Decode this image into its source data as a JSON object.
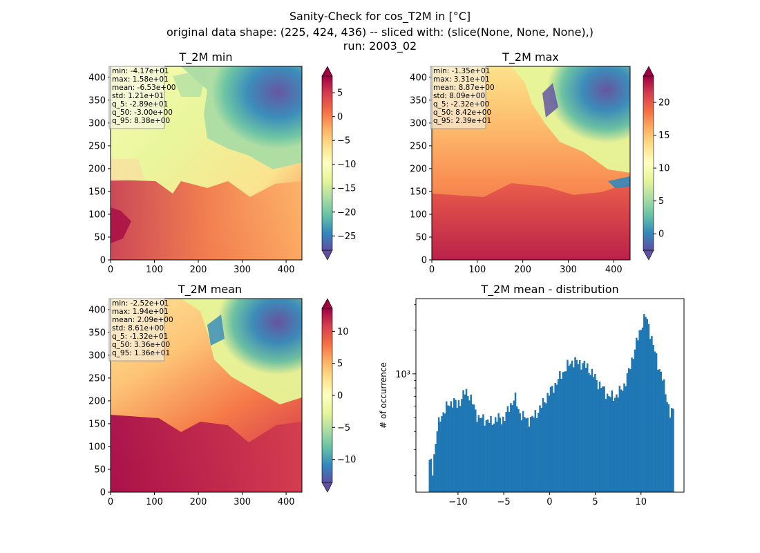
{
  "suptitle": {
    "line1": "Sanity-Check for cos_T2M in [°C]",
    "line2": "original data shape: (225, 424, 436) -- sliced with: (slice(None, None, None),)",
    "line3": "run: 2003_02"
  },
  "chart_data": [
    {
      "type": "heatmap",
      "title": "T_2M min",
      "xlim": [
        0,
        436
      ],
      "ylim": [
        0,
        424
      ],
      "xticks": [
        0,
        100,
        200,
        300,
        400
      ],
      "yticks": [
        0,
        50,
        100,
        150,
        200,
        250,
        300,
        350,
        400
      ],
      "colormap": "Spectral_r",
      "colorbar": {
        "range": [
          -28,
          8.5
        ],
        "ticks": [
          5,
          0,
          -5,
          -10,
          -15,
          -20,
          -25
        ]
      },
      "stats": [
        "min: -4.17e+01",
        "max: 1.58e+01",
        "mean: -6.53e+00",
        "std: 1.21e+01",
        "q_5: -2.89e+01",
        "q_50: -3.00e+00",
        "q_95: 8.38e+00"
      ]
    },
    {
      "type": "heatmap",
      "title": "T_2M max",
      "xlim": [
        0,
        436
      ],
      "ylim": [
        0,
        424
      ],
      "xticks": [
        0,
        100,
        200,
        300,
        400
      ],
      "yticks": [
        0,
        50,
        100,
        150,
        200,
        250,
        300,
        350,
        400
      ],
      "colormap": "Spectral_r",
      "colorbar": {
        "range": [
          -2.5,
          24
        ],
        "ticks": [
          20,
          15,
          10,
          5,
          0
        ]
      },
      "stats": [
        "min: -1.35e+01",
        "max: 3.31e+01",
        "mean: 8.87e+00",
        "std: 8.09e+00",
        "q_5: -2.32e+00",
        "q_50: 8.42e+00",
        "q_95: 2.39e+01"
      ]
    },
    {
      "type": "heatmap",
      "title": "T_2M mean",
      "xlim": [
        0,
        436
      ],
      "ylim": [
        0,
        424
      ],
      "xticks": [
        0,
        100,
        200,
        300,
        400
      ],
      "yticks": [
        0,
        50,
        100,
        150,
        200,
        250,
        300,
        350,
        400
      ],
      "colormap": "Spectral_r",
      "colorbar": {
        "range": [
          -13.6,
          13.6
        ],
        "ticks": [
          10,
          5,
          0,
          -5,
          -10
        ]
      },
      "stats": [
        "min: -2.52e+01",
        "max: 1.94e+01",
        "mean: 2.09e+00",
        "std: 8.61e+00",
        "q_5: -1.32e+01",
        "q_50: 3.36e+00",
        "q_95: 1.36e+01"
      ]
    },
    {
      "type": "bar",
      "title": "T_2M mean - distribution",
      "xlabel": "",
      "ylabel": "# of occurrence",
      "yscale": "log",
      "xlim": [
        -14.6,
        14.7
      ],
      "ylim": [
        153,
        3300
      ],
      "xticks": [
        -10,
        -5,
        0,
        5,
        10
      ],
      "yticks": [
        {
          "value": 1000,
          "label": "10³"
        }
      ],
      "bin_range": [
        -13.2,
        13.6
      ],
      "bar_color": "#1f77b4",
      "anchors": [
        [
          -13.2,
          240
        ],
        [
          -13.0,
          255
        ],
        [
          -12.8,
          215
        ],
        [
          -12.6,
          280
        ],
        [
          -12.3,
          400
        ],
        [
          -12.0,
          490
        ],
        [
          -11.5,
          560
        ],
        [
          -11.0,
          620
        ],
        [
          -10.5,
          650
        ],
        [
          -10.1,
          610
        ],
        [
          -9.6,
          680
        ],
        [
          -9.2,
          760
        ],
        [
          -8.8,
          720
        ],
        [
          -8.3,
          600
        ],
        [
          -7.8,
          500
        ],
        [
          -7.3,
          490
        ],
        [
          -6.8,
          480
        ],
        [
          -6.3,
          460
        ],
        [
          -5.8,
          500
        ],
        [
          -5.2,
          480
        ],
        [
          -4.8,
          520
        ],
        [
          -4.3,
          600
        ],
        [
          -3.8,
          700
        ],
        [
          -3.4,
          560
        ],
        [
          -3.0,
          520
        ],
        [
          -2.4,
          480
        ],
        [
          -1.8,
          500
        ],
        [
          -1.2,
          560
        ],
        [
          -0.5,
          660
        ],
        [
          0.0,
          750
        ],
        [
          0.5,
          820
        ],
        [
          1.2,
          970
        ],
        [
          1.8,
          1100
        ],
        [
          2.5,
          1230
        ],
        [
          3.1,
          1200
        ],
        [
          3.6,
          1180
        ],
        [
          4.1,
          1120
        ],
        [
          4.8,
          980
        ],
        [
          5.3,
          870
        ],
        [
          5.9,
          780
        ],
        [
          6.4,
          710
        ],
        [
          7.0,
          690
        ],
        [
          7.5,
          730
        ],
        [
          8.1,
          820
        ],
        [
          8.6,
          1000
        ],
        [
          9.2,
          1400
        ],
        [
          9.7,
          1800
        ],
        [
          10.2,
          2300
        ],
        [
          10.5,
          2500
        ],
        [
          10.9,
          2100
        ],
        [
          11.3,
          1600
        ],
        [
          11.8,
          1200
        ],
        [
          12.3,
          950
        ],
        [
          12.8,
          700
        ],
        [
          13.2,
          520
        ],
        [
          13.6,
          570
        ]
      ]
    }
  ]
}
